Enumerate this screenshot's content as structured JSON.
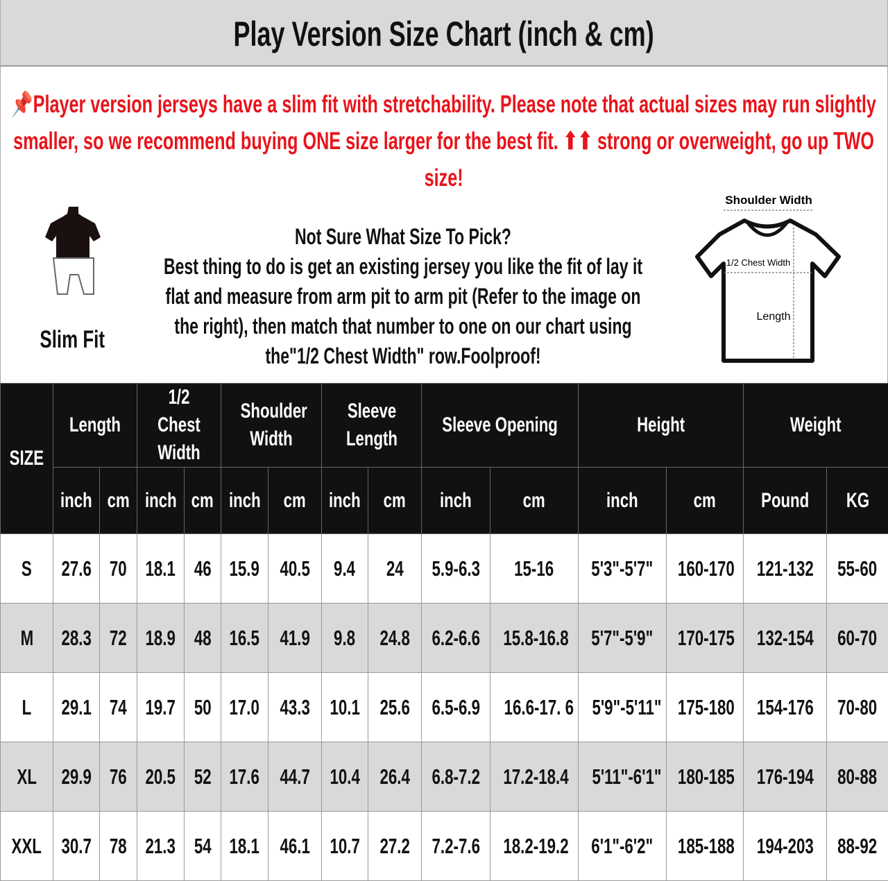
{
  "title": "Play Version Size Chart (inch & cm)",
  "note": {
    "icon": "pushpin-icon",
    "text": "Player version jerseys have a slim fit with stretchability. Please note that actual sizes may run slightly smaller, so we recommend buying ONE size larger for the best fit. ⬆⬆ strong or overweight, go up TWO size!",
    "color": "#e8141b"
  },
  "info": {
    "heading": "Not Sure What Size To Pick?",
    "body": "Best thing to do is get an existing jersey you like the fit of lay it flat and measure from arm pit to arm pit (Refer to the image on the right), then match that number to one on our chart using the\"1/2 Chest Width\" row.Foolproof!",
    "fit_label": "Slim Fit",
    "diagram": {
      "shoulder": "Shoulder Width",
      "chest": "1/2 Chest Width",
      "length": "Length"
    }
  },
  "table": {
    "size_header": "SIZE",
    "groups": [
      "Length",
      "1/2 Chest Width",
      "Shoulder Width",
      "Sleeve Length",
      "Sleeve Opening",
      "Height",
      "Weight"
    ],
    "units": [
      "inch",
      "cm",
      "inch",
      "cm",
      "inch",
      "cm",
      "inch",
      "cm",
      "inch",
      "cm",
      "inch",
      "cm",
      "Pound",
      "KG"
    ],
    "rows": [
      [
        "S",
        "27.6",
        "70",
        "18.1",
        "46",
        "15.9",
        "40.5",
        "9.4",
        "24",
        "5.9-6.3",
        "15-16",
        "5'3\"-5'7\"",
        "160-170",
        "121-132",
        "55-60"
      ],
      [
        "M",
        "28.3",
        "72",
        "18.9",
        "48",
        "16.5",
        "41.9",
        "9.8",
        "24.8",
        "6.2-6.6",
        "15.8-16.8",
        "5'7\"-5'9\"",
        "170-175",
        "132-154",
        "60-70"
      ],
      [
        "L",
        "29.1",
        "74",
        "19.7",
        "50",
        "17.0",
        "43.3",
        "10.1",
        "25.6",
        "6.5-6.9",
        "16.6-17. 6",
        "5'9\"-5'11\"",
        "175-180",
        "154-176",
        "70-80"
      ],
      [
        "XL",
        "29.9",
        "76",
        "20.5",
        "52",
        "17.6",
        "44.7",
        "10.4",
        "26.4",
        "6.8-7.2",
        "17.2-18.4",
        "5'11\"-6'1\"",
        "180-185",
        "176-194",
        "80-88"
      ],
      [
        "XXL",
        "30.7",
        "78",
        "21.3",
        "54",
        "18.1",
        "46.1",
        "10.7",
        "27.2",
        "7.2-7.6",
        "18.2-19.2",
        "6'1\"-6'2\"",
        "185-188",
        "194-203",
        "88-92"
      ]
    ]
  }
}
